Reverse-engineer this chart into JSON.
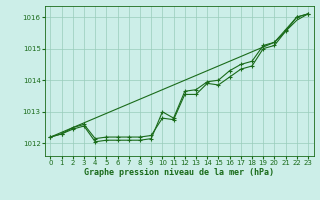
{
  "x": [
    0,
    1,
    2,
    3,
    4,
    5,
    6,
    7,
    8,
    9,
    10,
    11,
    12,
    13,
    14,
    15,
    16,
    17,
    18,
    19,
    20,
    21,
    22,
    23
  ],
  "trend": [
    1012.2,
    1012.35,
    1012.5,
    1012.65,
    1012.8,
    1012.95,
    1013.1,
    1013.25,
    1013.4,
    1013.55,
    1013.7,
    1013.85,
    1014.0,
    1014.15,
    1014.3,
    1014.45,
    1014.6,
    1014.75,
    1014.9,
    1015.05,
    1015.2,
    1015.55,
    1015.9,
    1016.1
  ],
  "jagged1": [
    1012.2,
    1012.3,
    1012.5,
    1012.6,
    1012.15,
    1012.2,
    1012.2,
    1012.2,
    1012.2,
    1012.25,
    1012.8,
    1012.75,
    1013.55,
    1013.55,
    1013.9,
    1013.85,
    1014.1,
    1014.35,
    1014.45,
    1015.0,
    1015.1,
    1015.55,
    1016.0,
    1016.1
  ],
  "jagged2": [
    1012.2,
    1012.3,
    1012.45,
    1012.55,
    1012.05,
    1012.1,
    1012.1,
    1012.1,
    1012.1,
    1012.15,
    1013.0,
    1012.8,
    1013.65,
    1013.7,
    1013.95,
    1014.0,
    1014.3,
    1014.5,
    1014.6,
    1015.1,
    1015.2,
    1015.6,
    1016.0,
    1016.1
  ],
  "bg_color": "#cceee8",
  "grid_color": "#99ccbb",
  "line_color": "#1a6b1a",
  "text_color": "#1a6b1a",
  "xlabel": "Graphe pression niveau de la mer (hPa)",
  "ylim": [
    1011.6,
    1016.35
  ],
  "xlim": [
    -0.5,
    23.5
  ],
  "yticks": [
    1012,
    1013,
    1014,
    1015,
    1016
  ],
  "xticks": [
    0,
    1,
    2,
    3,
    4,
    5,
    6,
    7,
    8,
    9,
    10,
    11,
    12,
    13,
    14,
    15,
    16,
    17,
    18,
    19,
    20,
    21,
    22,
    23
  ]
}
